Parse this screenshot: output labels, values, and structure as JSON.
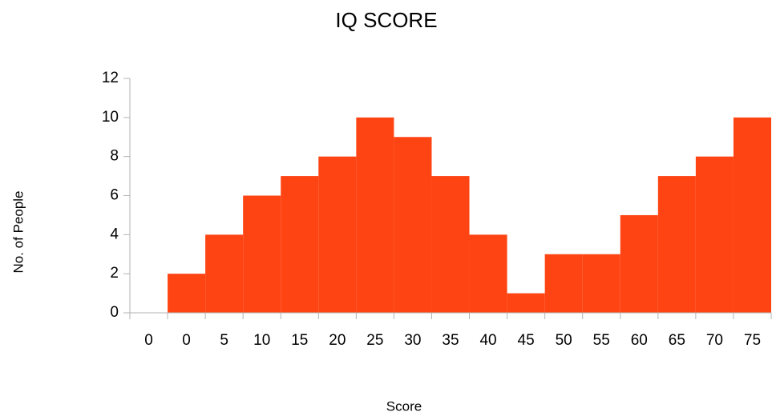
{
  "chart_data": {
    "type": "bar",
    "title": "IQ SCORE",
    "x_label": "Score",
    "y_label": "No. of People",
    "categories": [
      "0",
      "0",
      "5",
      "10",
      "15",
      "20",
      "25",
      "30",
      "35",
      "40",
      "45",
      "50",
      "55",
      "60",
      "65",
      "70",
      "75"
    ],
    "values": [
      0,
      2,
      4,
      6,
      7,
      8,
      10,
      9,
      7,
      4,
      1,
      3,
      3,
      5,
      7,
      8,
      10
    ],
    "color": "#ff4413",
    "ylim": [
      0,
      12
    ],
    "yticks": [
      0,
      2,
      4,
      6,
      8,
      10,
      12
    ],
    "grid": false
  }
}
